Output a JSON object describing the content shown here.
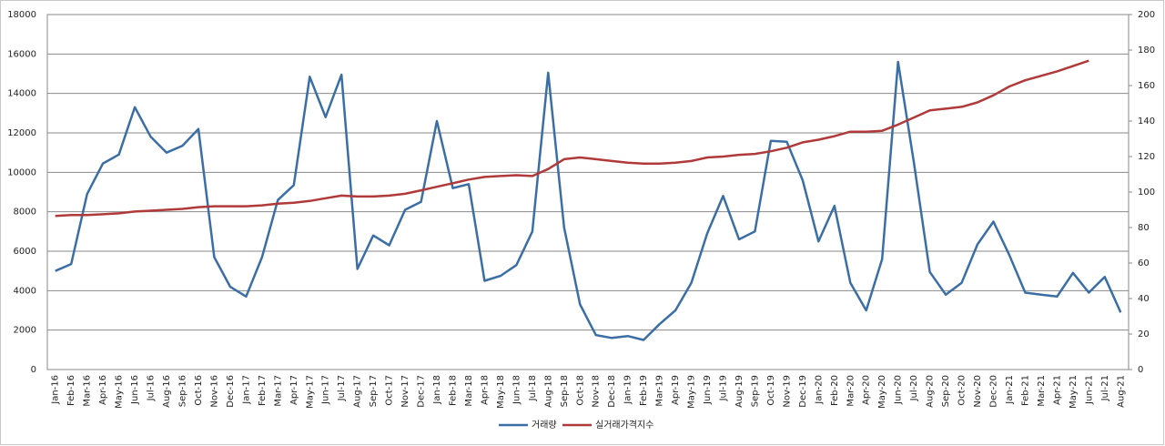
{
  "chart_data": {
    "type": "line",
    "categories": [
      "Jan-16",
      "Feb-16",
      "Mar-16",
      "Apr-16",
      "May-16",
      "Jun-16",
      "Jul-16",
      "Aug-16",
      "Sep-16",
      "Oct-16",
      "Nov-16",
      "Dec-16",
      "Jan-17",
      "Feb-17",
      "Mar-17",
      "Apr-17",
      "May-17",
      "Jun-17",
      "Jul-17",
      "Aug-17",
      "Sep-17",
      "Oct-17",
      "Nov-17",
      "Dec-17",
      "Jan-18",
      "Feb-18",
      "Mar-18",
      "Apr-18",
      "May-18",
      "Jun-18",
      "Jul-18",
      "Aug-18",
      "Sep-18",
      "Oct-18",
      "Nov-18",
      "Dec-18",
      "Jan-19",
      "Feb-19",
      "Mar-19",
      "Apr-19",
      "May-19",
      "Jun-19",
      "Jul-19",
      "Aug-19",
      "Sep-19",
      "Oct-19",
      "Nov-19",
      "Dec-19",
      "Jan-20",
      "Feb-20",
      "Mar-20",
      "Apr-20",
      "May-20",
      "Jun-20",
      "Jul-20",
      "Aug-20",
      "Sep-20",
      "Oct-20",
      "Nov-20",
      "Dec-20",
      "Jan-21",
      "Feb-21",
      "Mar-21",
      "Apr-21",
      "May-21",
      "Jun-21",
      "Jul-21",
      "Aug-21"
    ],
    "series": [
      {
        "name": "거래량",
        "color": "#3b6ea5",
        "values": [
          5000,
          5350,
          8900,
          10450,
          10900,
          13300,
          11800,
          11000,
          11350,
          12200,
          5700,
          4200,
          3700,
          5700,
          8600,
          9350,
          14850,
          12800,
          14950,
          5100,
          6800,
          6300,
          8100,
          8500,
          12600,
          9200,
          9400,
          4500,
          4750,
          5300,
          7000,
          15050,
          7200,
          3300,
          1750,
          1600,
          1700,
          1500,
          2300,
          3000,
          4400,
          6900,
          8800,
          6600,
          7000,
          11600,
          11550,
          9600,
          6500,
          8300,
          4400,
          3000,
          5600,
          15600,
          10500,
          4950,
          3800,
          4400,
          6350,
          7500,
          5800,
          3900,
          3800,
          3700,
          4900,
          3900,
          4700,
          2900
        ]
      },
      {
        "name": "실거래가격지수",
        "color": "#b03a3a",
        "axis": "y2",
        "values": [
          86.5,
          87,
          87,
          87.5,
          88,
          89,
          89.5,
          90,
          90.5,
          91.5,
          92,
          92,
          92,
          92.5,
          93.5,
          94,
          95,
          96.5,
          98,
          97.5,
          97.5,
          98,
          99,
          101,
          103,
          105,
          107,
          108.5,
          109,
          109.5,
          109,
          113,
          118.5,
          119.5,
          118.5,
          117.5,
          116.5,
          116,
          116,
          116.5,
          117.5,
          119.5,
          120,
          121,
          121.5,
          123,
          125,
          128,
          129.5,
          131.5,
          134,
          134,
          134.5,
          138,
          142,
          146,
          147,
          148,
          150.5,
          154.5,
          159.5,
          163,
          165.5,
          168,
          171,
          174,
          null,
          null
        ]
      }
    ],
    "ylim": [
      0,
      18000
    ],
    "yticks": [
      0,
      2000,
      4000,
      6000,
      8000,
      10000,
      12000,
      14000,
      16000,
      18000
    ],
    "y2lim": [
      0,
      200
    ],
    "y2ticks": [
      0,
      20,
      40,
      60,
      80,
      100,
      120,
      140,
      160,
      180,
      200
    ],
    "grid": true,
    "legend": "bottom"
  }
}
